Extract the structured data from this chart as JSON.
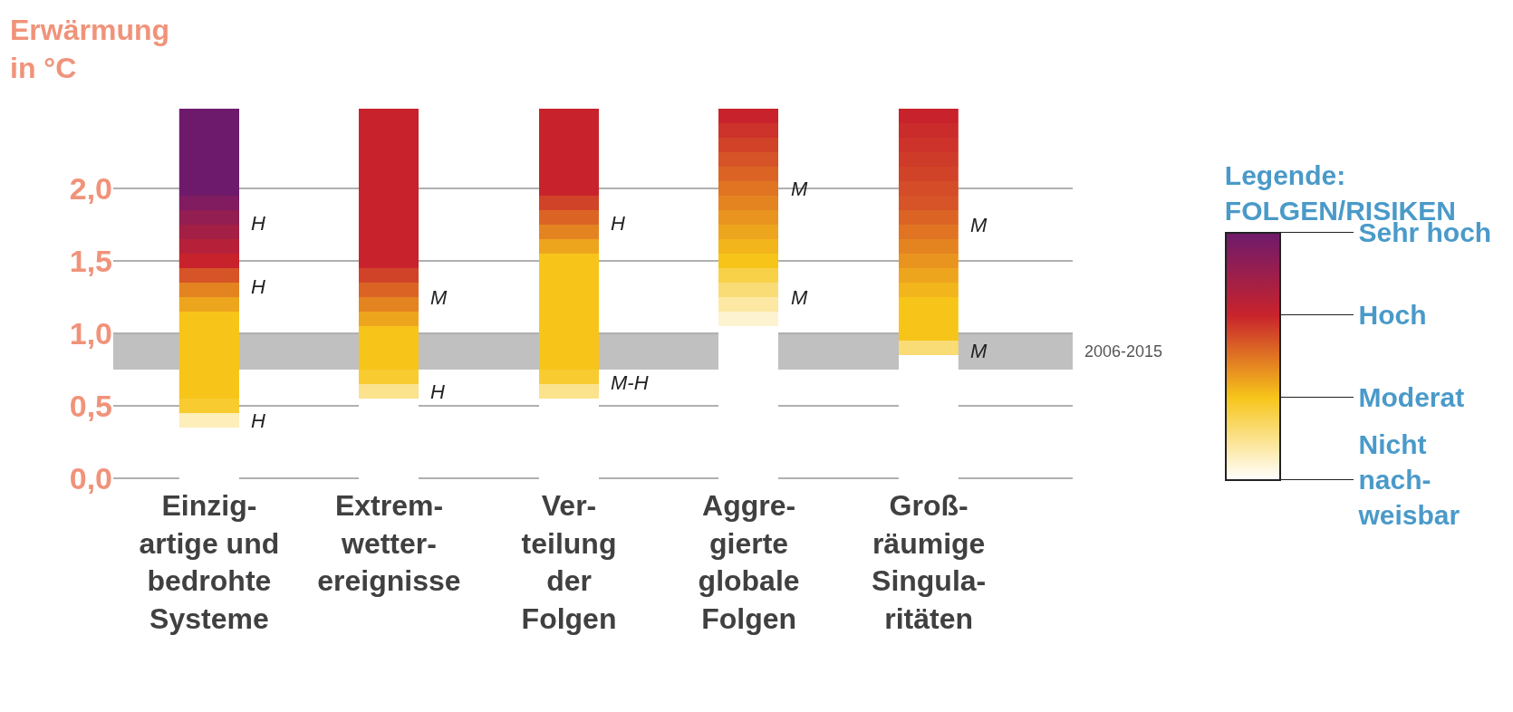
{
  "chart_data": {
    "type": "heatmap",
    "ylabel": "Erwärmung\nin °C",
    "clabel": "Legende:\nFOLGEN/RISIKEN",
    "categories": [
      "Einzig-\nartige und\nbedrohte\nSysteme",
      null,
      null,
      "Extrem-\nwetter-\nereignisse",
      null,
      null,
      "Ver-\nteilung\nder\nFolgen",
      null,
      null,
      "Aggre-\ngierte\nglobale\nFolgen",
      null,
      null,
      "Groß-\nräumige\nSingula-\nritäten"
    ],
    "ylim": [
      -0.05,
      2.55
    ],
    "yticks": [
      {
        "value": 0,
        "label": "0,0"
      },
      {
        "value": 0.5,
        "label": "0,5"
      },
      {
        "value": 1,
        "label": "1,0"
      },
      {
        "value": 1.5,
        "label": "1,5"
      },
      {
        "value": 2,
        "label": "2,0"
      }
    ],
    "bands": [
      {
        "axis": "y",
        "from": 0.75,
        "to": 1.0,
        "color": "#c0c0c0"
      }
    ],
    "cells": [
      [
        3,
        null,
        null,
        2,
        null,
        null,
        2,
        null,
        null,
        2,
        null,
        null,
        2
      ],
      [
        3,
        null,
        null,
        2,
        null,
        null,
        2,
        null,
        null,
        1.9,
        null,
        null,
        1.95
      ],
      [
        3,
        null,
        null,
        2,
        null,
        null,
        2,
        null,
        null,
        1.8,
        null,
        null,
        1.9
      ],
      [
        3,
        null,
        null,
        2,
        null,
        null,
        2,
        null,
        null,
        1.7,
        null,
        null,
        1.85
      ],
      [
        3,
        null,
        null,
        2,
        null,
        null,
        2,
        null,
        null,
        1.6,
        null,
        null,
        1.8
      ],
      [
        3,
        null,
        null,
        2,
        null,
        null,
        2,
        null,
        null,
        1.5,
        null,
        null,
        1.75
      ],
      [
        2.8,
        null,
        null,
        2,
        null,
        null,
        1.8,
        null,
        null,
        1.4,
        null,
        null,
        1.7
      ],
      [
        2.6,
        null,
        null,
        2,
        null,
        null,
        1.6,
        null,
        null,
        1.3,
        null,
        null,
        1.6
      ],
      [
        2.4,
        null,
        null,
        2,
        null,
        null,
        1.4,
        null,
        null,
        1.2,
        null,
        null,
        1.5
      ],
      [
        2.2,
        null,
        null,
        2,
        null,
        null,
        1.2,
        null,
        null,
        1.1,
        null,
        null,
        1.4
      ],
      [
        2,
        null,
        null,
        2,
        null,
        null,
        1,
        null,
        null,
        1,
        null,
        null,
        1.3
      ],
      [
        1.7,
        null,
        null,
        1.8,
        null,
        null,
        1,
        null,
        null,
        0.8,
        null,
        null,
        1.2
      ],
      [
        1.4,
        null,
        null,
        1.6,
        null,
        null,
        1,
        null,
        null,
        0.6,
        null,
        null,
        1.1
      ],
      [
        1.2,
        null,
        null,
        1.4,
        null,
        null,
        1,
        null,
        null,
        0.4,
        null,
        null,
        1
      ],
      [
        1,
        null,
        null,
        1.2,
        null,
        null,
        1,
        null,
        null,
        0.2,
        null,
        null,
        1
      ],
      [
        1,
        null,
        null,
        1,
        null,
        null,
        1,
        null,
        null,
        0,
        null,
        null,
        1
      ],
      [
        1,
        null,
        null,
        1,
        null,
        null,
        1,
        null,
        null,
        0,
        null,
        null,
        0.6
      ],
      [
        1,
        null,
        null,
        1,
        null,
        null,
        1,
        null,
        null,
        0,
        null,
        null,
        0
      ],
      [
        1,
        null,
        null,
        0.9,
        null,
        null,
        0.9,
        null,
        null,
        0,
        null,
        null,
        0
      ],
      [
        1,
        null,
        null,
        0.5,
        null,
        null,
        0.5,
        null,
        null,
        0,
        null,
        null,
        0
      ],
      [
        0.9,
        null,
        null,
        0,
        null,
        null,
        0,
        null,
        null,
        0,
        null,
        null,
        0
      ],
      [
        0.3,
        null,
        null,
        0,
        null,
        null,
        0,
        null,
        null,
        0,
        null,
        null,
        0
      ],
      [
        0,
        null,
        null,
        0,
        null,
        null,
        0,
        null,
        null,
        0,
        null,
        null,
        0
      ],
      [
        0,
        null,
        null,
        0,
        null,
        null,
        0,
        null,
        null,
        0,
        null,
        null,
        0
      ],
      [
        0,
        null,
        null,
        0,
        null,
        null,
        0,
        null,
        null,
        0,
        null,
        null,
        0
      ],
      [
        0,
        null,
        null,
        0,
        null,
        null,
        0,
        null,
        null,
        0,
        null,
        null,
        0
      ]
    ],
    "colors": [
      "#ffffff",
      "#f7c51a",
      "#c8232c",
      "#6e1a6c"
    ],
    "clim": [
      0,
      3
    ],
    "cticks": [
      {
        "value": 0,
        "label": "Nicht\nnach-\nweisbar"
      },
      {
        "value": 1,
        "label": "Moderat"
      },
      {
        "value": 2,
        "label": "Hoch"
      },
      {
        "value": 3,
        "label": "Sehr hoch"
      }
    ],
    "grid": "y",
    "annotations": [
      "2006-2015",
      "H",
      "H",
      "H",
      "M",
      "H",
      "H",
      "M-H",
      "M",
      "M",
      "M",
      "M"
    ]
  }
}
